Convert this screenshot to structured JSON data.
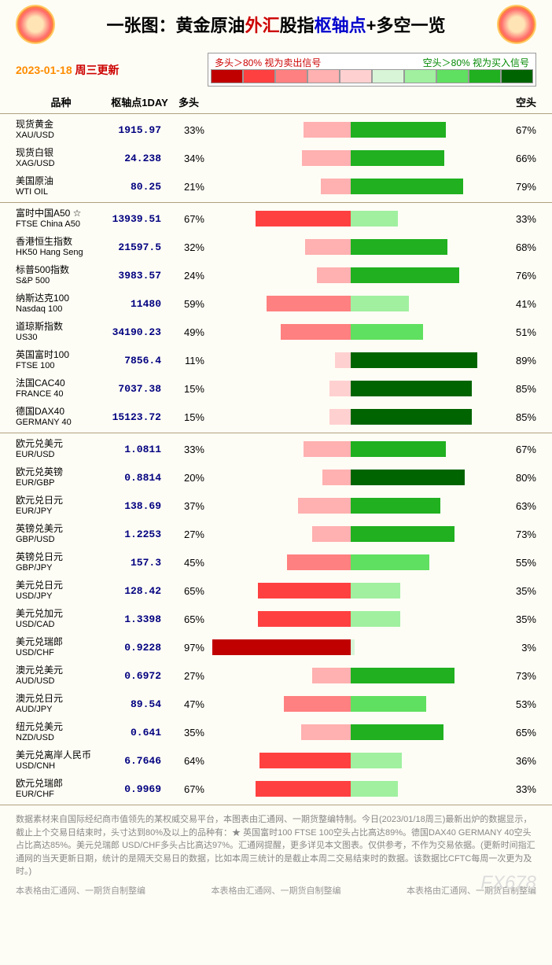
{
  "title": {
    "prefix": "一张图：",
    "part1": "黄金原油",
    "part2": "外汇",
    "part3": "股指",
    "part4": "枢轴点",
    "part5": "+多空一览"
  },
  "date": {
    "day": "2023-01-18",
    "weekday": "周三更新"
  },
  "legend": {
    "left": "多头＞80% 视为卖出信号",
    "right": "空头＞80% 视为买入信号"
  },
  "scale_colors": [
    "#c00000",
    "#ff4040",
    "#ff8080",
    "#ffb0b0",
    "#ffd0d0",
    "#d8f5d8",
    "#a0f0a0",
    "#60e060",
    "#20b020",
    "#006400"
  ],
  "columns": {
    "name": "品种",
    "pivot": "枢轴点1DAY",
    "long": "多头",
    "short": "空头"
  },
  "pivot_color": "#000080",
  "sections": [
    {
      "rows": [
        {
          "cn": "现货黄金",
          "en": "XAU/USD",
          "pivot": "1915.97",
          "long": 33,
          "short": 67
        },
        {
          "cn": "现货白银",
          "en": "XAG/USD",
          "pivot": "24.238",
          "long": 34,
          "short": 66
        },
        {
          "cn": "美国原油",
          "en": "WTI OIL",
          "pivot": "80.25",
          "long": 21,
          "short": 79
        }
      ]
    },
    {
      "rows": [
        {
          "cn": "富时中国A50 ☆",
          "en": "FTSE China A50",
          "pivot": "13939.51",
          "long": 67,
          "short": 33
        },
        {
          "cn": "香港恒生指数",
          "en": "HK50 Hang Seng",
          "pivot": "21597.5",
          "long": 32,
          "short": 68
        },
        {
          "cn": "标普500指数",
          "en": "S&P 500",
          "pivot": "3983.57",
          "long": 24,
          "short": 76
        },
        {
          "cn": "纳斯达克100",
          "en": "Nasdaq 100",
          "pivot": "11480",
          "long": 59,
          "short": 41
        },
        {
          "cn": "道琼斯指数",
          "en": "US30",
          "pivot": "34190.23",
          "long": 49,
          "short": 51
        },
        {
          "cn": "英国富时100",
          "en": "FTSE 100",
          "pivot": "7856.4",
          "long": 11,
          "short": 89
        },
        {
          "cn": "法国CAC40",
          "en": "FRANCE 40",
          "pivot": "7037.38",
          "long": 15,
          "short": 85
        },
        {
          "cn": "德国DAX40",
          "en": "GERMANY 40",
          "pivot": "15123.72",
          "long": 15,
          "short": 85
        }
      ]
    },
    {
      "rows": [
        {
          "cn": "欧元兑美元",
          "en": "EUR/USD",
          "pivot": "1.0811",
          "long": 33,
          "short": 67
        },
        {
          "cn": "欧元兑英镑",
          "en": "EUR/GBP",
          "pivot": "0.8814",
          "long": 20,
          "short": 80
        },
        {
          "cn": "欧元兑日元",
          "en": "EUR/JPY",
          "pivot": "138.69",
          "long": 37,
          "short": 63
        },
        {
          "cn": "英镑兑美元",
          "en": "GBP/USD",
          "pivot": "1.2253",
          "long": 27,
          "short": 73
        },
        {
          "cn": "英镑兑日元",
          "en": "GBP/JPY",
          "pivot": "157.3",
          "long": 45,
          "short": 55
        },
        {
          "cn": "美元兑日元",
          "en": "USD/JPY",
          "pivot": "128.42",
          "long": 65,
          "short": 35
        },
        {
          "cn": "美元兑加元",
          "en": "USD/CAD",
          "pivot": "1.3398",
          "long": 65,
          "short": 35
        },
        {
          "cn": "美元兑瑞郎",
          "en": "USD/CHF",
          "pivot": "0.9228",
          "long": 97,
          "short": 3
        },
        {
          "cn": "澳元兑美元",
          "en": "AUD/USD",
          "pivot": "0.6972",
          "long": 27,
          "short": 73
        },
        {
          "cn": "澳元兑日元",
          "en": "AUD/JPY",
          "pivot": "89.54",
          "long": 47,
          "short": 53
        },
        {
          "cn": "纽元兑美元",
          "en": "NZD/USD",
          "pivot": "0.641",
          "long": 35,
          "short": 65
        },
        {
          "cn": "美元兑离岸人民币",
          "en": "USD/CNH",
          "pivot": "6.7646",
          "long": 64,
          "short": 36
        },
        {
          "cn": "欧元兑瑞郎",
          "en": "EUR/CHF",
          "pivot": "0.9969",
          "long": 67,
          "short": 33
        }
      ]
    }
  ],
  "footer_text": "数据素材来自国际经纪商市值领先的某权威交易平台，本图表由汇通网、一期货整编特制。今日(2023/01/18周三)最新出炉的数据显示，截止上个交易日结束时，头寸达到80%及以上的品种有：★ 英国富时100    FTSE 100空头占比高达89%。德国DAX40    GERMANY 40空头占比高达85%。美元兑瑞郎 USD/CHF多头占比高达97%。汇通网提醒，更多详见本文图表。仅供参考，不作为交易依据。(更新时间指汇通网的当天更新日期，统计的是隔天交易日的数据，比如本周三统计的是截止本周二交易结束时的数据。该数据比CFTC每周一次更为及时。)",
  "footer_credit": "本表格由汇通网、一期货自制整编",
  "watermark": "FX678"
}
